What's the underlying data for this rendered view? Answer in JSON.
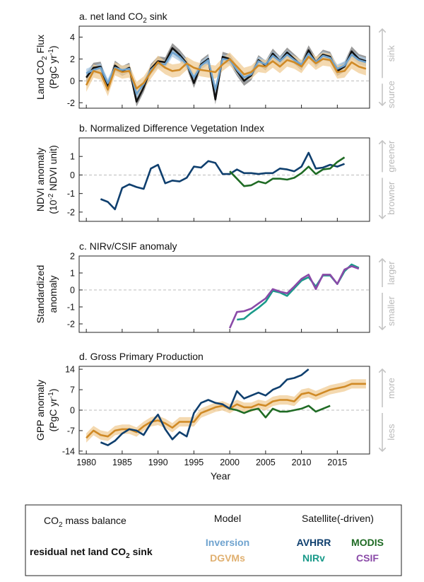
{
  "colors": {
    "avhrr": "#0f3f6e",
    "modis": "#1f6b24",
    "nirv": "#1a9a8a",
    "csif": "#8a4aa8",
    "inversion": "#6fa3cf",
    "dgvms": "#d08a26",
    "dgvms_band": "#f0cc96",
    "residual": "#111111",
    "residual_band": "#8a8a8a",
    "inversion_band": "#a9c9e4",
    "arrow": "#c4c4c4"
  },
  "x_axis": {
    "label": "Year",
    "range": [
      1979,
      2019.5
    ],
    "ticks": [
      1980,
      1985,
      1990,
      1995,
      2000,
      2005,
      2010,
      2015
    ]
  },
  "legend": {
    "col1_header": "CO",
    "col1_header_sub": "2",
    "col1_header_rest": " mass balance",
    "col1_item": "residual net land CO",
    "col1_item_sub": "2",
    "col1_item_rest": " sink",
    "col2_header": "Model",
    "col2_items": [
      "Inversion",
      "DGVMs"
    ],
    "col3_header": "Satellite(-driven)",
    "col3_items": [
      "AVHRR",
      "MODIS",
      "NIRv",
      "CSIF"
    ]
  },
  "chart_data": [
    {
      "type": "line",
      "title_pre": "a. net land CO",
      "title_sub": "2",
      "title_post": " sink",
      "ylabel_line1_pre": "Land CO",
      "ylabel_line1_sub": "2",
      "ylabel_line1_post": " Flux",
      "ylabel_line2_pre": "(PgC yr",
      "ylabel_line2_sup": "-1",
      "ylabel_line2_post": ")",
      "ylim": [
        -2.5,
        5
      ],
      "yticks": [
        -2,
        0,
        2,
        4
      ],
      "side_top": "sink",
      "side_bottom": "source",
      "series": [
        {
          "name": "residual net land CO2 sink",
          "color_key": "residual",
          "band_key": "residual_band",
          "band": 0.45,
          "x": [
            1980,
            1981,
            1982,
            1983,
            1984,
            1985,
            1986,
            1987,
            1988,
            1989,
            1990,
            1991,
            1992,
            1993,
            1994,
            1995,
            1996,
            1997,
            1998,
            1999,
            2000,
            2001,
            2002,
            2003,
            2004,
            2005,
            2006,
            2007,
            2008,
            2009,
            2010,
            2011,
            2012,
            2013,
            2014,
            2015,
            2016,
            2017,
            2018,
            2019
          ],
          "values": [
            0.3,
            1.2,
            1.3,
            -0.6,
            1.4,
            0.9,
            1.2,
            -1.9,
            -0.6,
            1.1,
            1.8,
            1.7,
            3.0,
            2.4,
            1.6,
            -0.2,
            1.5,
            2.0,
            -1.7,
            2.2,
            2.0,
            0.9,
            0.0,
            0.5,
            1.9,
            1.4,
            2.5,
            1.8,
            2.6,
            2.0,
            1.4,
            2.8,
            1.7,
            2.4,
            2.2,
            0.9,
            1.3,
            2.7,
            2.0,
            1.8
          ]
        },
        {
          "name": "Inversion",
          "color_key": "inversion",
          "band_key": "inversion_band",
          "band": 0.4,
          "x": [
            1980,
            1981,
            1982,
            1983,
            1984,
            1985,
            1986,
            1987,
            1988,
            1989,
            1990,
            1991,
            1992,
            1993,
            1994,
            1995,
            1996,
            1997,
            1998,
            1999,
            2000,
            2001,
            2002,
            2003,
            2004,
            2005,
            2006,
            2007,
            2008,
            2009,
            2010,
            2011,
            2012,
            2013,
            2014,
            2015,
            2016,
            2017,
            2018,
            2019
          ],
          "values": [
            0.7,
            1.0,
            1.2,
            -0.2,
            1.2,
            1.0,
            1.1,
            -1.2,
            -0.3,
            1.0,
            1.6,
            1.5,
            2.6,
            2.2,
            1.5,
            0.3,
            1.4,
            1.9,
            -0.8,
            2.0,
            1.9,
            1.0,
            0.3,
            0.6,
            1.8,
            1.5,
            2.3,
            1.8,
            2.4,
            1.9,
            1.5,
            2.5,
            1.7,
            2.3,
            2.1,
            1.1,
            1.4,
            2.4,
            1.9,
            1.7
          ]
        },
        {
          "name": "DGVMs",
          "color_key": "dgvms",
          "band_key": "dgvms_band",
          "band": 0.6,
          "x": [
            1980,
            1981,
            1982,
            1983,
            1984,
            1985,
            1986,
            1987,
            1988,
            1989,
            1990,
            1991,
            1992,
            1993,
            1994,
            1995,
            1996,
            1997,
            1998,
            1999,
            2000,
            2001,
            2002,
            2003,
            2004,
            2005,
            2006,
            2007,
            2008,
            2009,
            2010,
            2011,
            2012,
            2013,
            2014,
            2015,
            2016,
            2017,
            2018,
            2019
          ],
          "values": [
            -0.4,
            0.9,
            0.7,
            -0.8,
            1.1,
            0.8,
            0.9,
            -0.7,
            -0.2,
            0.8,
            1.7,
            1.2,
            0.9,
            1.0,
            1.6,
            1.2,
            1.0,
            0.9,
            0.8,
            1.5,
            2.0,
            1.3,
            0.6,
            0.8,
            1.4,
            1.3,
            1.8,
            1.3,
            1.9,
            1.7,
            1.3,
            2.2,
            1.6,
            2.0,
            1.9,
            0.8,
            0.9,
            1.7,
            1.3,
            1.1
          ]
        }
      ]
    },
    {
      "type": "line",
      "title": "b. Normalized Difference Vegetation Index",
      "ylabel_line1": "NDVI anomaly",
      "ylabel_line2_pre": "(10",
      "ylabel_line2_sup": "-2",
      "ylabel_line2_post": " NDVI unit)",
      "ylim": [
        -2.5,
        2
      ],
      "yticks": [
        -2,
        -1,
        0,
        1
      ],
      "side_top": "greener",
      "side_bottom": "browner",
      "series": [
        {
          "name": "AVHRR",
          "color_key": "avhrr",
          "x": [
            1982,
            1983,
            1984,
            1985,
            1986,
            1987,
            1988,
            1989,
            1990,
            1991,
            1992,
            1993,
            1994,
            1995,
            1996,
            1997,
            1998,
            1999,
            2000,
            2001,
            2002,
            2003,
            2004,
            2005,
            2006,
            2007,
            2008,
            2009,
            2010,
            2011,
            2012,
            2013,
            2014,
            2015,
            2016
          ],
          "values": [
            -1.3,
            -1.45,
            -1.85,
            -0.7,
            -0.5,
            -0.65,
            -0.75,
            0.35,
            0.55,
            -0.45,
            -0.3,
            -0.35,
            -0.15,
            0.45,
            0.4,
            0.75,
            0.65,
            0.05,
            0.05,
            0.3,
            0.1,
            0.1,
            0.05,
            0.1,
            0.1,
            0.35,
            0.3,
            0.2,
            0.45,
            1.2,
            0.35,
            0.4,
            0.55,
            0.45,
            0.6
          ]
        },
        {
          "name": "MODIS",
          "color_key": "modis",
          "x": [
            2000,
            2001,
            2002,
            2003,
            2004,
            2005,
            2006,
            2007,
            2008,
            2009,
            2010,
            2011,
            2012,
            2013,
            2014,
            2015,
            2016
          ],
          "values": [
            0.2,
            -0.2,
            -0.6,
            -0.55,
            -0.35,
            -0.45,
            -0.2,
            -0.2,
            -0.25,
            -0.15,
            0.1,
            0.45,
            0.05,
            0.3,
            0.35,
            0.7,
            0.95
          ]
        }
      ]
    },
    {
      "type": "line",
      "title": "c. NIRv/CSIF anomaly",
      "ylabel_line1": "Standardized",
      "ylabel_line2": "anomaly",
      "ylim": [
        -2.5,
        2
      ],
      "yticks": [
        -2,
        -1,
        0,
        1,
        2
      ],
      "side_top": "larger",
      "side_bottom": "smaller",
      "series": [
        {
          "name": "NIRv",
          "color_key": "nirv",
          "x": [
            2001,
            2002,
            2003,
            2004,
            2005,
            2006,
            2007,
            2008,
            2009,
            2010,
            2011,
            2012,
            2013,
            2014,
            2015,
            2016,
            2017,
            2018
          ],
          "values": [
            -1.75,
            -1.7,
            -1.35,
            -1.05,
            -0.7,
            -0.05,
            -0.15,
            -0.35,
            0.1,
            0.55,
            0.75,
            0.2,
            0.85,
            0.85,
            0.35,
            1.1,
            1.5,
            1.3
          ]
        },
        {
          "name": "CSIF",
          "color_key": "csif",
          "x": [
            2000,
            2001,
            2002,
            2003,
            2004,
            2005,
            2006,
            2007,
            2008,
            2009,
            2010,
            2011,
            2012,
            2013,
            2014,
            2015,
            2016,
            2017,
            2018
          ],
          "values": [
            -2.25,
            -1.3,
            -1.25,
            -1.1,
            -0.8,
            -0.5,
            0.05,
            -0.1,
            -0.2,
            0.2,
            0.65,
            0.9,
            0.05,
            0.9,
            0.9,
            0.35,
            1.2,
            1.4,
            1.25
          ]
        }
      ]
    },
    {
      "type": "line",
      "title": "d. Gross Primary Production",
      "ylabel_line1": "GPP anomaly",
      "ylabel_line2_pre": "(PgC yr",
      "ylabel_line2_sup": "-1",
      "ylabel_line2_post": ")",
      "ylim": [
        -15,
        15
      ],
      "yticks": [
        -14,
        -7,
        0,
        7,
        14
      ],
      "side_top": "more",
      "side_bottom": "less",
      "series": [
        {
          "name": "DGVMs",
          "color_key": "dgvms",
          "band_key": "dgvms_band",
          "band": 1.6,
          "x": [
            1980,
            1981,
            1982,
            1983,
            1984,
            1985,
            1986,
            1987,
            1988,
            1989,
            1990,
            1991,
            1992,
            1993,
            1994,
            1995,
            1996,
            1997,
            1998,
            1999,
            2000,
            2001,
            2002,
            2003,
            2004,
            2005,
            2006,
            2007,
            2008,
            2009,
            2010,
            2011,
            2012,
            2013,
            2014,
            2015,
            2016,
            2017,
            2018,
            2019
          ],
          "values": [
            -9.5,
            -7.0,
            -8.5,
            -9.0,
            -7.0,
            -6.5,
            -6.5,
            -7.5,
            -5.5,
            -4.0,
            -3.5,
            -4.5,
            -6.0,
            -4.0,
            -4.0,
            -4.0,
            -1.0,
            0.0,
            1.0,
            1.5,
            0.5,
            2.0,
            1.0,
            1.0,
            2.0,
            1.5,
            3.0,
            3.5,
            3.5,
            3.0,
            5.5,
            6.0,
            5.0,
            6.0,
            7.0,
            7.5,
            8.0,
            9.0,
            9.0,
            9.0
          ]
        },
        {
          "name": "AVHRR",
          "color_key": "avhrr",
          "x": [
            1982,
            1983,
            1984,
            1985,
            1986,
            1987,
            1988,
            1989,
            1990,
            1991,
            1992,
            1993,
            1994,
            1995,
            1996,
            1997,
            1998,
            1999,
            2000,
            2001,
            2002,
            2003,
            2004,
            2005,
            2006,
            2007,
            2008,
            2009,
            2010,
            2011
          ],
          "values": [
            -11.0,
            -12.0,
            -10.5,
            -8.0,
            -6.5,
            -7.0,
            -8.5,
            -4.5,
            -1.5,
            -6.5,
            -10.0,
            -7.5,
            -9.0,
            -1.0,
            2.5,
            3.5,
            2.5,
            2.0,
            0.5,
            6.5,
            4.0,
            5.0,
            6.0,
            5.0,
            7.0,
            8.0,
            10.5,
            11.0,
            12.0,
            14.0
          ]
        },
        {
          "name": "MODIS",
          "color_key": "modis",
          "x": [
            2000,
            2001,
            2002,
            2003,
            2004,
            2005,
            2006,
            2007,
            2008,
            2009,
            2010,
            2011,
            2012,
            2013,
            2014
          ],
          "values": [
            0.5,
            0.0,
            -1.0,
            0.0,
            0.5,
            -2.5,
            0.5,
            -0.5,
            -0.5,
            0.0,
            0.5,
            1.5,
            -0.5,
            0.5,
            1.5
          ]
        }
      ]
    }
  ]
}
